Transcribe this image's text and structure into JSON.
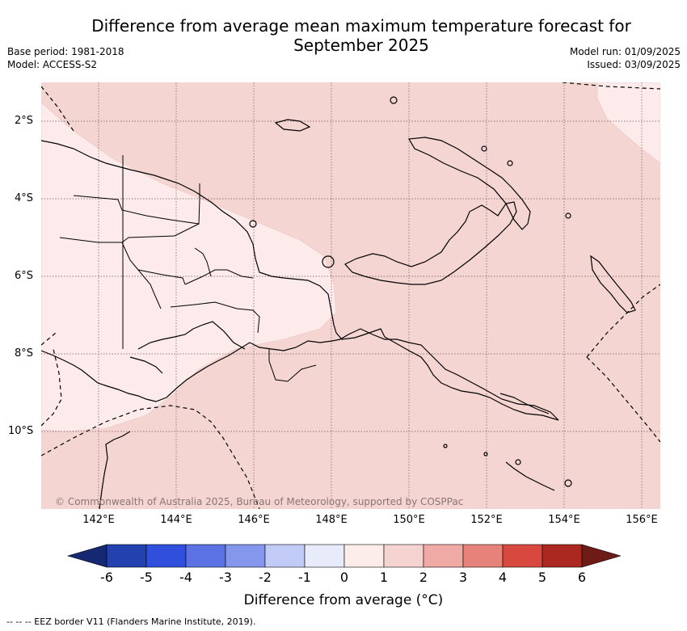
{
  "title_line1": "Difference from average mean maximum temperature forecast for",
  "title_line2": "September 2025",
  "base_period": "Base period: 1981-2018",
  "model": "Model: ACCESS-S2",
  "model_run": "Model run: 01/09/2025",
  "issued": "Issued: 03/09/2025",
  "lat_labels": [
    "2°S",
    "4°S",
    "6°S",
    "8°S",
    "10°S"
  ],
  "lon_labels": [
    "142°E",
    "144°E",
    "146°E",
    "148°E",
    "150°E",
    "152°E",
    "154°E",
    "156°E"
  ],
  "copyright": "© Commonwealth of Australia 2025, Bureau of Meteorology, supported by COSPPac",
  "colorbar": {
    "ticks": [
      "-6",
      "-5",
      "-4",
      "-3",
      "-2",
      "-1",
      "0",
      "1",
      "2",
      "3",
      "4",
      "5",
      "6"
    ],
    "colors": [
      "#172873",
      "#2441b0",
      "#2f4fdc",
      "#5a72e4",
      "#8597ec",
      "#c2cbf5",
      "#e8ecfa",
      "#fcecea",
      "#f5d3d0",
      "#f0aaa5",
      "#e6827a",
      "#d9483f",
      "#ab2820",
      "#6e1a16"
    ],
    "label": "Difference from average (°C)"
  },
  "footer": "-- -- -- EEZ border V11 (Flanders Marine Institute, 2019)."
}
